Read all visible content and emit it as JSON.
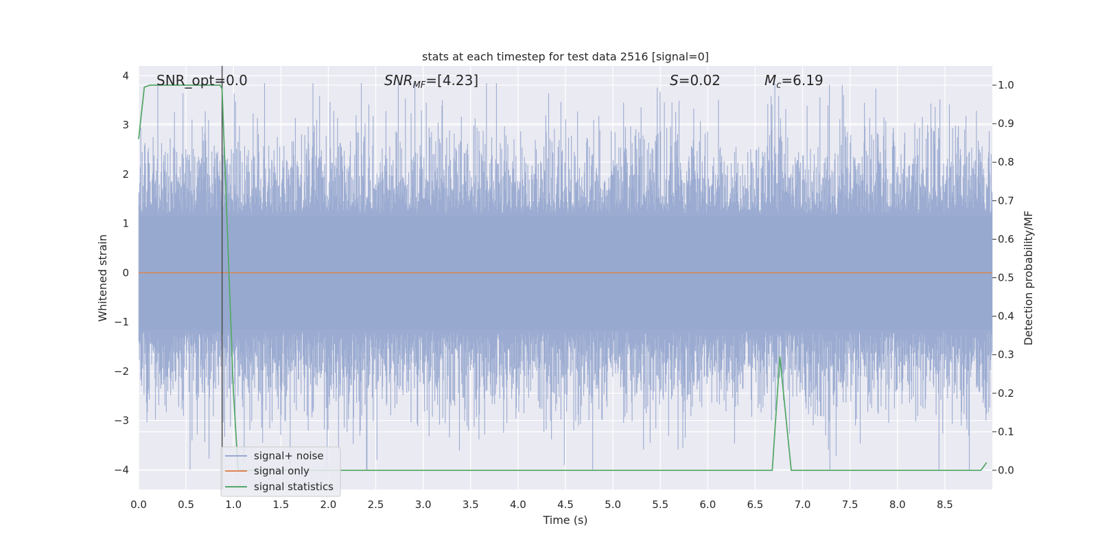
{
  "chart_data": {
    "type": "line",
    "title": "stats at each timestep for test data 2516 [signal=0]",
    "xlabel": "Time (s)",
    "ylabel": "Whitened strain",
    "y2label": "Detection probability/MF",
    "xlim": [
      0.0,
      9.0
    ],
    "ylim": [
      -4.4,
      4.2
    ],
    "y2lim": [
      -0.05,
      1.05
    ],
    "x_ticks": [
      "0.0",
      "0.5",
      "1.0",
      "1.5",
      "2.0",
      "2.5",
      "3.0",
      "3.5",
      "4.0",
      "4.5",
      "5.0",
      "5.5",
      "6.0",
      "6.5",
      "7.0",
      "7.5",
      "8.0",
      "8.5"
    ],
    "y_ticks": [
      "4",
      "3",
      "2",
      "1",
      "0",
      "−1",
      "−2",
      "−3",
      "−4"
    ],
    "y2_ticks": [
      "1.0",
      "0.9",
      "0.8",
      "0.7",
      "0.6",
      "0.5",
      "0.4",
      "0.3",
      "0.2",
      "0.1",
      "0.0"
    ],
    "grid": true,
    "legend_position": "lower-left",
    "annotations": {
      "snr_opt": "SNR_opt=0.0",
      "snr_mf_main": "SNR",
      "snr_mf_sub": "MF",
      "snr_mf_value": "=[4.23]",
      "s_main": "S",
      "s_value": "=0.02",
      "mc_main": "M",
      "mc_sub": "c",
      "mc_value": "=6.19"
    },
    "vline_x": 0.88,
    "series": [
      {
        "name": "signal+ noise",
        "axis": "left",
        "color": "#97a8cf",
        "description_only": true
      },
      {
        "name": "signal only",
        "axis": "left",
        "color": "#dd8452",
        "x": [
          0.0,
          9.0
        ],
        "y": [
          0.0,
          0.0
        ]
      },
      {
        "name": "signal statistics",
        "axis": "right",
        "color": "#55a868",
        "x": [
          0.0,
          0.06,
          0.12,
          0.2,
          0.3,
          0.5,
          0.7,
          0.86,
          0.88,
          1.0,
          1.05,
          1.2,
          2.0,
          3.0,
          4.0,
          5.0,
          6.0,
          6.5,
          6.68,
          6.76,
          6.88,
          7.0,
          8.0,
          8.88,
          8.94
        ],
        "y": [
          0.86,
          0.995,
          1.0,
          1.0,
          1.0,
          1.0,
          1.0,
          1.0,
          0.99,
          0.2,
          0.0,
          0.0,
          0.0,
          0.0,
          0.0,
          0.0,
          0.0,
          0.0,
          0.0,
          0.295,
          0.0,
          0.0,
          0.0,
          0.0,
          0.02
        ]
      }
    ]
  }
}
